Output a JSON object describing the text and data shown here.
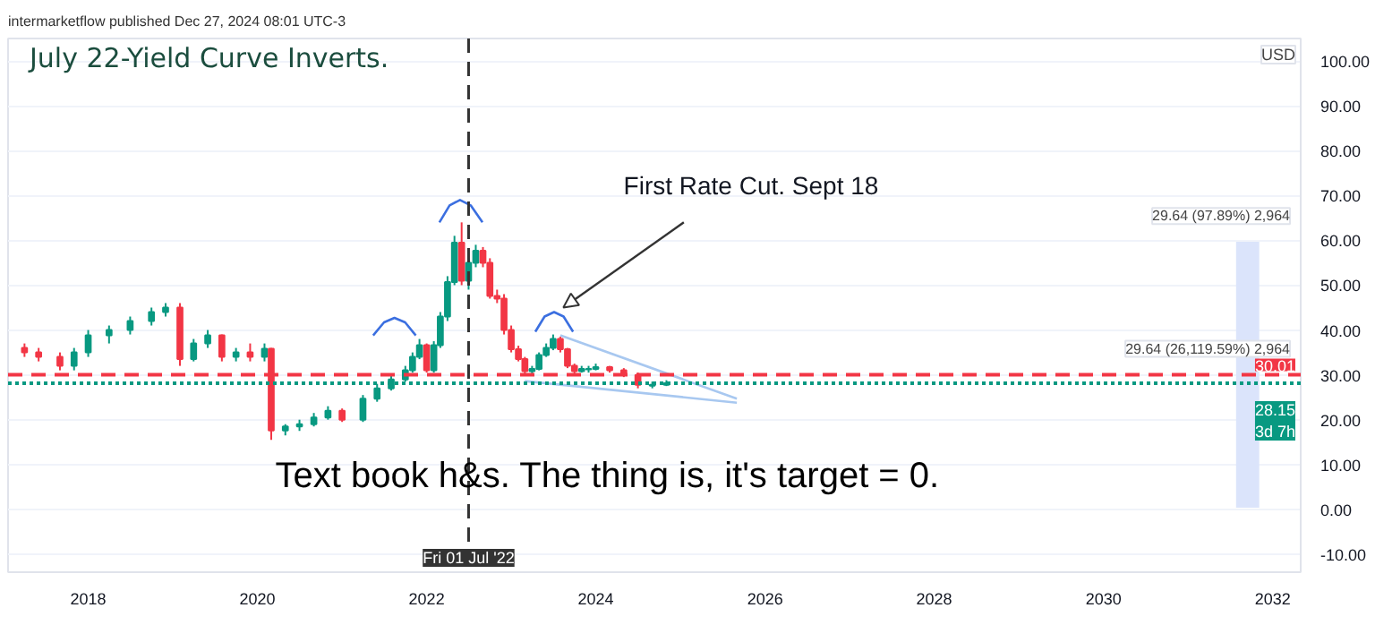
{
  "chart_data": {
    "type": "candlestick",
    "title": "July 22-Yield Curve Inverts.",
    "ylabel": "USD",
    "annotations": [
      "intermarketflow published Dec 27, 2024 08:01 UTC-3",
      {
        "text": "First Rate Cut. Sept 18",
        "x": "2023-07-05",
        "y": 44
      },
      "Text book h&s. The thing is, it's target = 0.",
      {
        "text": "29.64 (97.89%) 2,964",
        "x": "2031-09-15",
        "y": 59.65
      },
      {
        "text": "29.64 (26,119.59%) 2,964",
        "x": "2031-09-15",
        "y": 30.01
      }
    ],
    "x": [
      "2017-04",
      "2017-06",
      "2017-09",
      "2017-11",
      "2018-01",
      "2018-04",
      "2018-07",
      "2018-10",
      "2018-12",
      "2019-02",
      "2019-04",
      "2019-06",
      "2019-08",
      "2019-10",
      "2019-12",
      "2020-02",
      "2020-03",
      "2020-05",
      "2020-07",
      "2020-09",
      "2020-11",
      "2021-01",
      "2021-04",
      "2021-06",
      "2021-08",
      "2021-10",
      "2021-11",
      "2021-12",
      "2022-01",
      "2022-02",
      "2022-03",
      "2022-04",
      "2022-05",
      "2022-06",
      "2022-07",
      "2022-08",
      "2022-09",
      "2022-10",
      "2022-11",
      "2022-12",
      "2023-01",
      "2023-02",
      "2023-03",
      "2023-04",
      "2023-05",
      "2023-06",
      "2023-07",
      "2023-08",
      "2023-09",
      "2023-10",
      "2023-11",
      "2023-12",
      "2024-01",
      "2024-03",
      "2024-05",
      "2024-07",
      "2024-09",
      "2024-11"
    ],
    "ohlc": [
      [
        36,
        37,
        34,
        35
      ],
      [
        35,
        36,
        33,
        34
      ],
      [
        34,
        35,
        31,
        32
      ],
      [
        32,
        36,
        31,
        35
      ],
      [
        35,
        40,
        34,
        38.8
      ],
      [
        38.8,
        41,
        37,
        40
      ],
      [
        40,
        43,
        39,
        42
      ],
      [
        42,
        45,
        41,
        44
      ],
      [
        44,
        46,
        43,
        45
      ],
      [
        45,
        46,
        32,
        33.5
      ],
      [
        33.5,
        38,
        33,
        37
      ],
      [
        37,
        40,
        36,
        38.8
      ],
      [
        38.8,
        39,
        33,
        34
      ],
      [
        34,
        36,
        33,
        35
      ],
      [
        35,
        37,
        33,
        34
      ],
      [
        34,
        37,
        33,
        35.8
      ],
      [
        35.8,
        36,
        15.5,
        17.6
      ],
      [
        17.6,
        19,
        16.5,
        18.5
      ],
      [
        18.5,
        20,
        17.5,
        19
      ],
      [
        19,
        21.5,
        18.5,
        20.5
      ],
      [
        20.5,
        23,
        20,
        22
      ],
      [
        22,
        22.5,
        19.5,
        20
      ],
      [
        20,
        25.5,
        19.5,
        24.7
      ],
      [
        24.7,
        28,
        24,
        27
      ],
      [
        27,
        30,
        26.5,
        29
      ],
      [
        29,
        32,
        28.5,
        31
      ],
      [
        31,
        35,
        30.5,
        34
      ],
      [
        34,
        38,
        33.5,
        36.6
      ],
      [
        36.6,
        37,
        30.5,
        31
      ],
      [
        31,
        37.5,
        30.5,
        36.6
      ],
      [
        36.6,
        44,
        36,
        43
      ],
      [
        43,
        52,
        42,
        50.7
      ],
      [
        50.7,
        61,
        50,
        59.5
      ],
      [
        59.5,
        64,
        50,
        51
      ],
      [
        51,
        56,
        49,
        55
      ],
      [
        55,
        59,
        54,
        57.7
      ],
      [
        57.7,
        58.5,
        54,
        55
      ],
      [
        55,
        56,
        47,
        47.6
      ],
      [
        47.6,
        49,
        46,
        47
      ],
      [
        47,
        48,
        39,
        40
      ],
      [
        40,
        41,
        35,
        35.7
      ],
      [
        35.7,
        36.5,
        33,
        33.5
      ],
      [
        33.5,
        34,
        30,
        30.8
      ],
      [
        30.8,
        32,
        30,
        31.3
      ],
      [
        31.3,
        35,
        31,
        34.4
      ],
      [
        34.4,
        37,
        34,
        36
      ],
      [
        36,
        39,
        35.5,
        38
      ],
      [
        38,
        38.5,
        35,
        35.7
      ],
      [
        35.7,
        36,
        31.5,
        32
      ],
      [
        32,
        32.5,
        30,
        30.8
      ],
      [
        30.8,
        32,
        30.5,
        31.3
      ],
      [
        31.2,
        32,
        30.5,
        31.3
      ],
      [
        31.3,
        32.5,
        31,
        31.7
      ],
      [
        31.7,
        32,
        30.5,
        31
      ],
      [
        31,
        31.5,
        29.5,
        30
      ],
      [
        30,
        30.5,
        27,
        27.8
      ],
      [
        27.6,
        28.5,
        27,
        27.8
      ],
      [
        27.8,
        28.8,
        27.5,
        28.15
      ]
    ],
    "colors": [
      "#f23645",
      "#f23645",
      "#f23645",
      "#089981",
      "#089981",
      "#089981",
      "#089981",
      "#089981",
      "#089981",
      "#f23645",
      "#089981",
      "#089981",
      "#f23645",
      "#089981",
      "#f23645",
      "#089981",
      "#f23645",
      "#089981",
      "#089981",
      "#089981",
      "#089981",
      "#f23645",
      "#089981",
      "#089981",
      "#089981",
      "#089981",
      "#089981",
      "#089981",
      "#f23645",
      "#089981",
      "#089981",
      "#089981",
      "#089981",
      "#f23645",
      "#089981",
      "#089981",
      "#f23645",
      "#f23645",
      "#f23645",
      "#f23645",
      "#f23645",
      "#f23645",
      "#f23645",
      "#089981",
      "#089981",
      "#089981",
      "#089981",
      "#f23645",
      "#f23645",
      "#f23645",
      "#089981",
      "#089981",
      "#089981",
      "#f23645",
      "#f23645",
      "#f23645",
      "#089981",
      "#089981"
    ],
    "series": [
      {
        "type": "line",
        "color": "#3b6fe0",
        "x": [
          "2021-05-15",
          "2021-07-01",
          "2021-08-15",
          "2021-09-30",
          "2021-11-15"
        ],
        "values": [
          38.8,
          41.7,
          42.7,
          41.7,
          38.8
        ]
      },
      {
        "type": "line",
        "color": "#3b6fe0",
        "x": [
          "2022-02-25",
          "2022-04-10",
          "2022-05-25",
          "2022-07-10",
          "2022-08-30"
        ],
        "values": [
          64,
          67.8,
          69,
          67.8,
          64
        ]
      },
      {
        "type": "line",
        "color": "#3b6fe0",
        "x": [
          "2023-04-15",
          "2023-05-25",
          "2023-07-05",
          "2023-08-15",
          "2023-09-25"
        ],
        "values": [
          39.6,
          43,
          44,
          43,
          39.6
        ]
      },
      {
        "type": "line",
        "color": "#a8c8f0",
        "x": [
          "2023-08",
          "2025-09"
        ],
        "values": [
          38.8,
          24.7
        ]
      },
      {
        "type": "line",
        "color": "#a8c8f0",
        "x": [
          "2023-03",
          "2025-09"
        ],
        "values": [
          28.6,
          23.8
        ]
      },
      {
        "type": "bar",
        "color": "#dbe4fb",
        "x": [
          "2031-09-15"
        ],
        "base": [
          0.4
        ],
        "values": [
          59.3
        ]
      }
    ],
    "ref_lines": [
      {
        "axis": "y",
        "value": 30.01,
        "label": "30.01",
        "color": "#f23645",
        "line_style": "dashed"
      },
      {
        "axis": "y",
        "value": 28.15,
        "label": "28.15\n3d 7h",
        "color": "#089981",
        "line_style": "dotted"
      },
      {
        "axis": "x",
        "value": "2022-07-01",
        "label": "Fri 01 Jul '22",
        "color": "#333333",
        "line_style": "dashed"
      }
    ],
    "xlim": [
      "2017-01-20",
      "2032-05-01"
    ],
    "xticks": [
      "2018",
      "2020",
      "2022",
      "2024",
      "2026",
      "2028",
      "2030",
      "2032"
    ],
    "ylim": [
      -14,
      105
    ],
    "yticks": [
      {
        "value": -10,
        "label": "-10.00"
      },
      {
        "value": 0,
        "label": "0.00"
      },
      {
        "value": 10,
        "label": "10.00"
      },
      {
        "value": 20,
        "label": "20.00"
      },
      {
        "value": 30,
        "label": "30.00"
      },
      {
        "value": 40,
        "label": "40.00"
      },
      {
        "value": 50,
        "label": "50.00"
      },
      {
        "value": 60,
        "label": "60.00"
      },
      {
        "value": 70,
        "label": "70.00"
      },
      {
        "value": 80,
        "label": "80.00"
      },
      {
        "value": 90,
        "label": "90.00"
      },
      {
        "value": 100,
        "label": "100.00"
      }
    ],
    "grid": true
  }
}
